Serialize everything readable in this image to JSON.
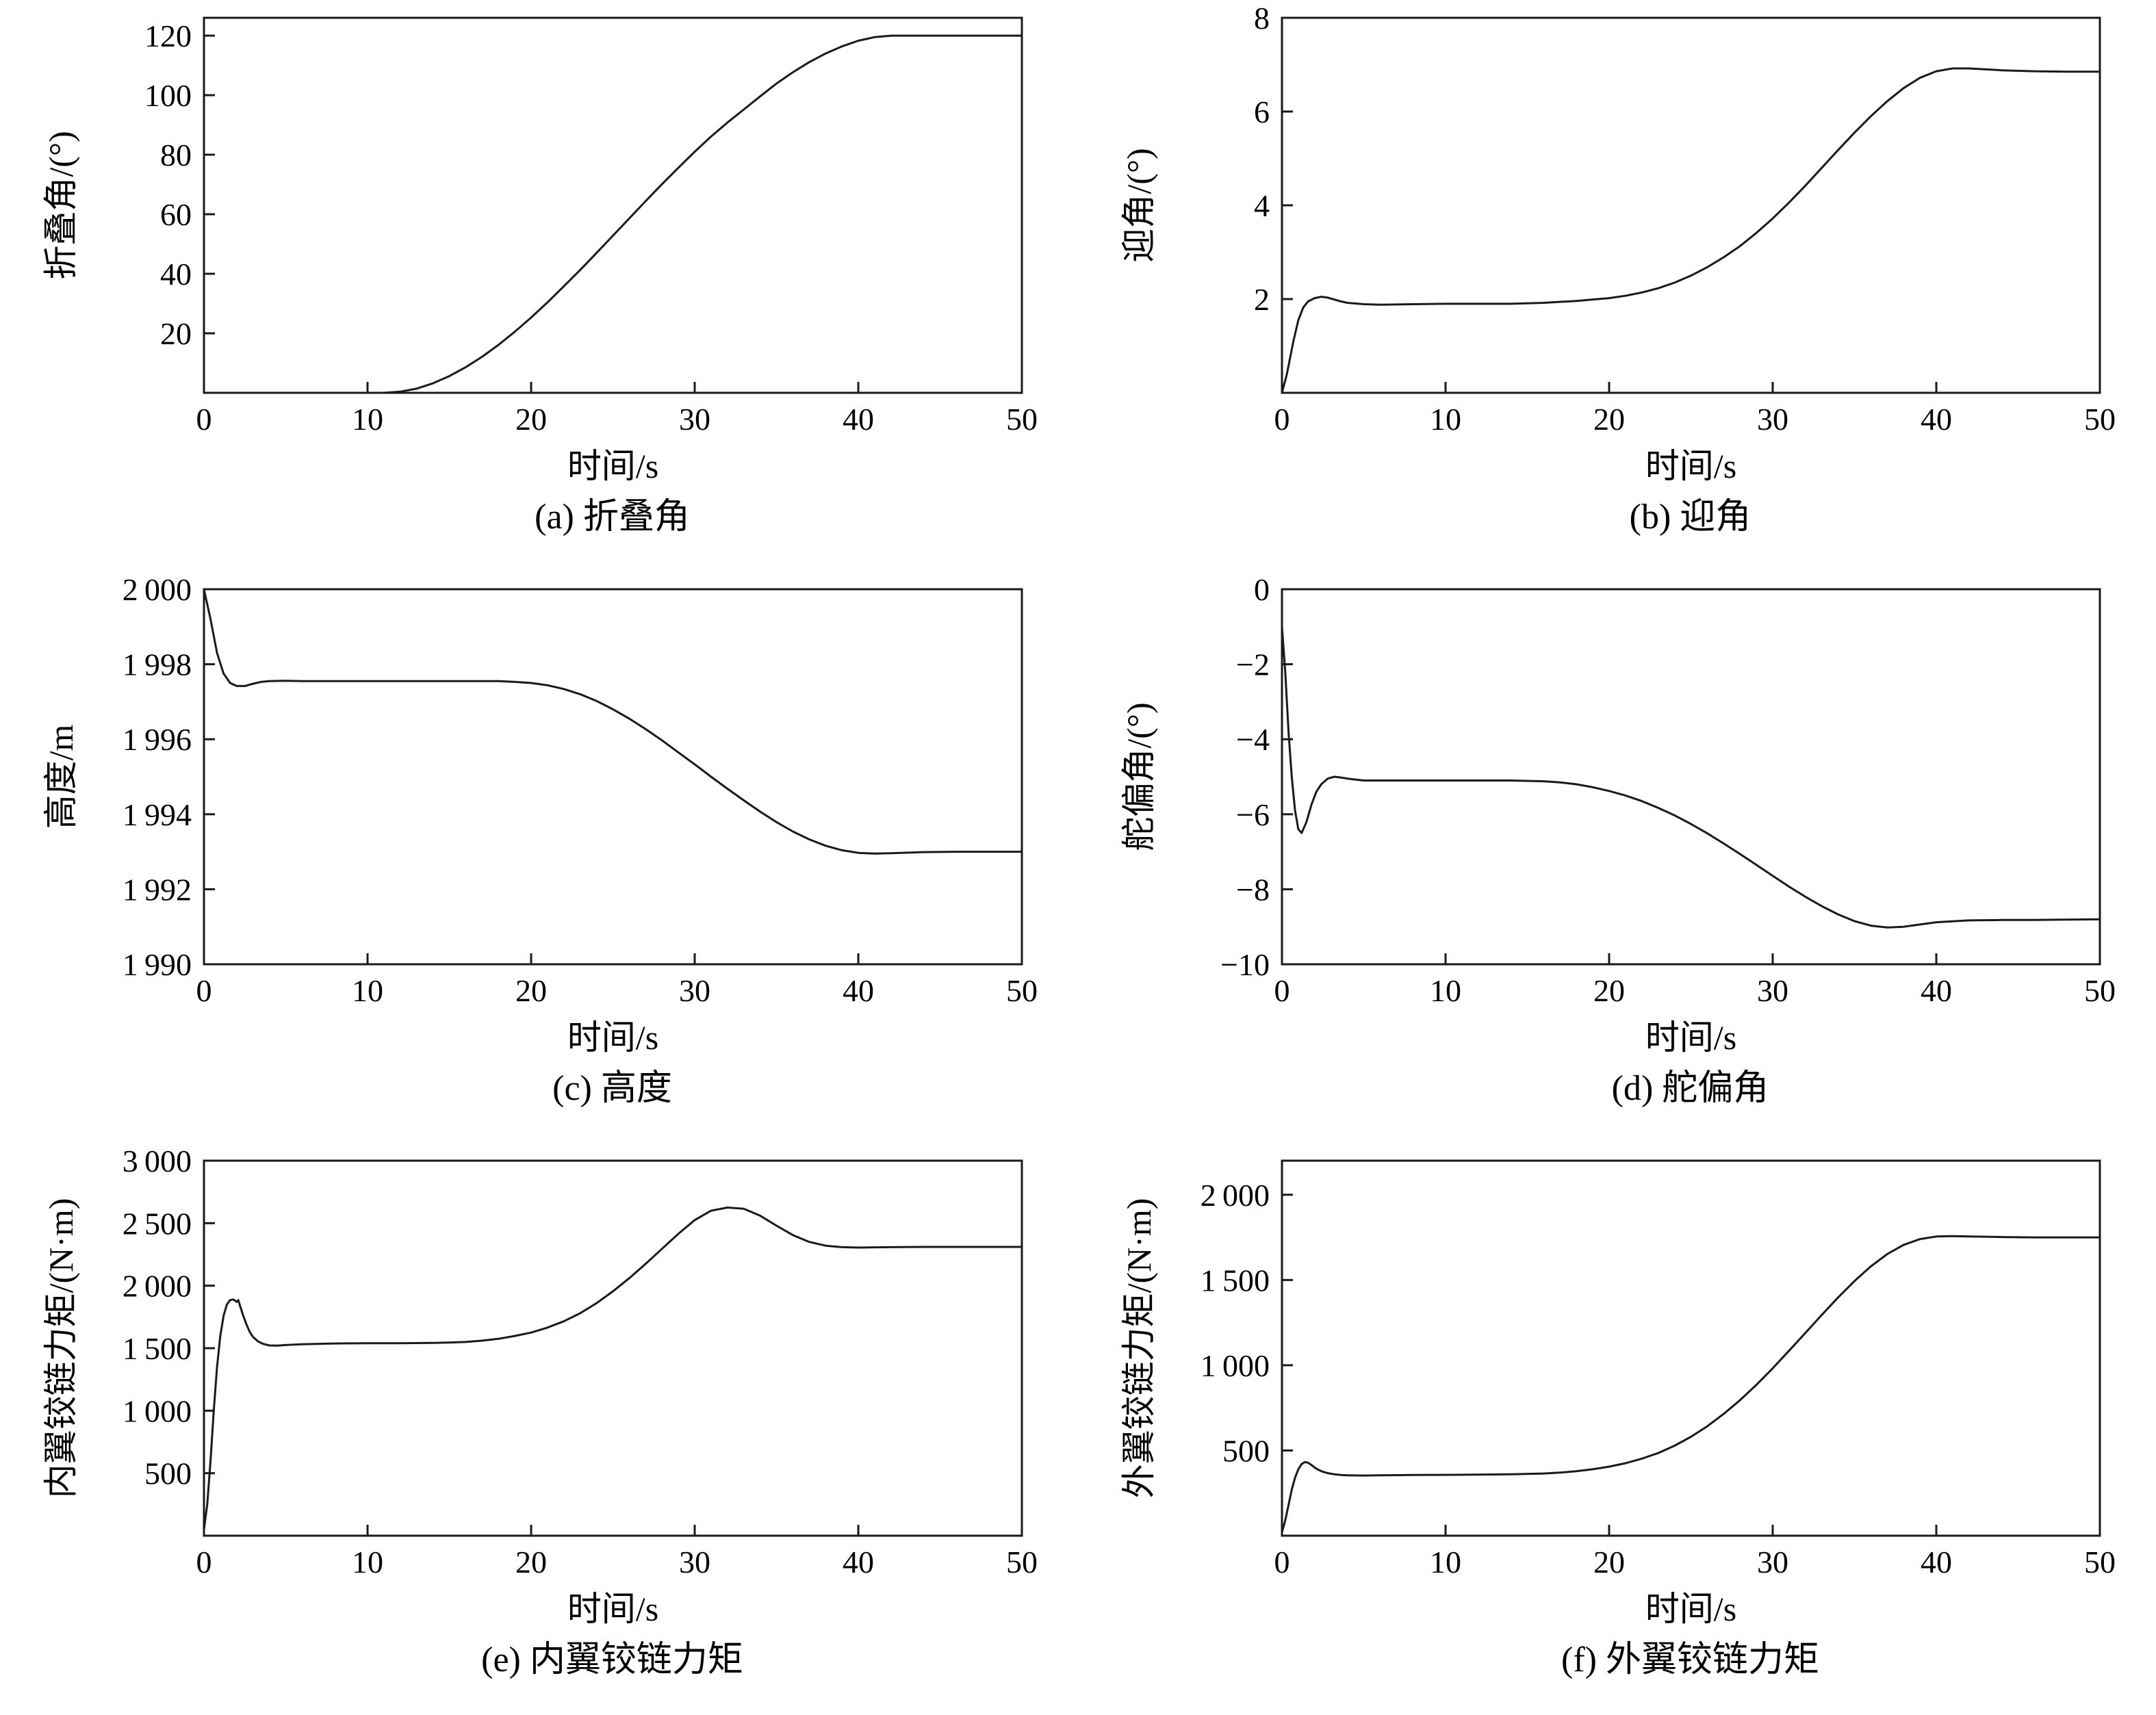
{
  "page": {
    "background": "#ffffff",
    "text_color": "#000000",
    "line_color": "#1a1a1a",
    "axis_color": "#1a1a1a"
  },
  "chart_data": [
    {
      "id": "a",
      "type": "line",
      "caption": "(a) 折叠角",
      "xlabel": "时间/s",
      "ylabel": "折叠角/(°)",
      "xlim": [
        0,
        50
      ],
      "ylim": [
        0,
        126
      ],
      "grid": false,
      "legend": "none",
      "xticks": {
        "values": [
          0,
          10,
          20,
          30,
          40,
          50
        ],
        "labels": [
          "0",
          "10",
          "20",
          "30",
          "40",
          "50"
        ]
      },
      "yticks": {
        "values": [
          20,
          40,
          60,
          80,
          100,
          120
        ],
        "labels": [
          "20",
          "40",
          "60",
          "80",
          "100",
          "120"
        ]
      },
      "x": [
        0,
        5,
        10,
        11,
        12,
        13,
        14,
        15,
        16,
        17,
        18,
        19,
        20,
        21,
        22,
        23,
        24,
        25,
        26,
        27,
        28,
        29,
        30,
        31,
        32,
        33,
        34,
        35,
        36,
        37,
        38,
        39,
        40,
        41,
        42,
        45,
        50
      ],
      "y": [
        0,
        0,
        0,
        0,
        0.4,
        1.4,
        3.2,
        5.6,
        8.6,
        12.1,
        16.1,
        20.5,
        25.3,
        30.4,
        35.8,
        41.3,
        47,
        52.8,
        58.6,
        64.4,
        70.1,
        75.6,
        81,
        86.1,
        90.8,
        95.2,
        99.6,
        103.9,
        107.7,
        111.1,
        114,
        116.4,
        118.3,
        119.5,
        120,
        120,
        120
      ]
    },
    {
      "id": "b",
      "type": "line",
      "caption": "(b) 迎角",
      "xlabel": "时间/s",
      "ylabel": "迎角/(°)",
      "xlim": [
        0,
        50
      ],
      "ylim": [
        0,
        8
      ],
      "grid": false,
      "legend": "none",
      "xticks": {
        "values": [
          0,
          10,
          20,
          30,
          40,
          50
        ],
        "labels": [
          "0",
          "10",
          "20",
          "30",
          "40",
          "50"
        ]
      },
      "yticks": {
        "values": [
          2,
          4,
          6,
          8
        ],
        "labels": [
          "2",
          "4",
          "6",
          "8"
        ]
      },
      "x": [
        0,
        0.3,
        0.7,
        1,
        1.3,
        1.6,
        2,
        2.4,
        2.8,
        3.2,
        3.6,
        4,
        5,
        6,
        8,
        10,
        12,
        14,
        16,
        18,
        20,
        21,
        22,
        23,
        24,
        25,
        26,
        27,
        28,
        29,
        30,
        31,
        32,
        33,
        34,
        35,
        36,
        37,
        38,
        39,
        40,
        41,
        42,
        44,
        46,
        48,
        50
      ],
      "y": [
        0,
        0.4,
        1.1,
        1.55,
        1.82,
        1.95,
        2.02,
        2.05,
        2.03,
        1.99,
        1.95,
        1.92,
        1.89,
        1.88,
        1.89,
        1.9,
        1.9,
        1.9,
        1.92,
        1.96,
        2.02,
        2.07,
        2.14,
        2.23,
        2.35,
        2.5,
        2.68,
        2.89,
        3.13,
        3.41,
        3.72,
        4.06,
        4.42,
        4.8,
        5.18,
        5.55,
        5.9,
        6.22,
        6.5,
        6.72,
        6.86,
        6.92,
        6.92,
        6.88,
        6.86,
        6.85,
        6.85
      ]
    },
    {
      "id": "c",
      "type": "line",
      "caption": "(c) 高度",
      "xlabel": "时间/s",
      "ylabel": "高度/m",
      "xlim": [
        0,
        50
      ],
      "ylim": [
        1990,
        2000
      ],
      "grid": false,
      "legend": "none",
      "xticks": {
        "values": [
          0,
          10,
          20,
          30,
          40,
          50
        ],
        "labels": [
          "0",
          "10",
          "20",
          "30",
          "40",
          "50"
        ]
      },
      "yticks": {
        "values": [
          1990,
          1992,
          1994,
          1996,
          1998,
          2000
        ],
        "labels": [
          "1 990",
          "1 992",
          "1 994",
          "1 996",
          "1 998",
          "2 000"
        ]
      },
      "x": [
        0,
        0.4,
        0.8,
        1.2,
        1.6,
        2,
        2.5,
        3,
        3.5,
        4,
        5,
        6,
        8,
        10,
        12,
        14,
        16,
        17,
        18,
        19,
        20,
        21,
        22,
        23,
        24,
        25,
        26,
        27,
        28,
        29,
        30,
        31,
        32,
        33,
        34,
        35,
        36,
        37,
        38,
        39,
        40,
        41,
        42,
        44,
        46,
        48,
        50
      ],
      "y": [
        2000,
        1999.2,
        1998.3,
        1997.75,
        1997.5,
        1997.42,
        1997.42,
        1997.48,
        1997.53,
        1997.55,
        1997.56,
        1997.55,
        1997.55,
        1997.55,
        1997.55,
        1997.55,
        1997.55,
        1997.55,
        1997.55,
        1997.53,
        1997.5,
        1997.44,
        1997.34,
        1997.2,
        1997.02,
        1996.8,
        1996.55,
        1996.27,
        1995.97,
        1995.65,
        1995.33,
        1995,
        1994.68,
        1994.37,
        1994.07,
        1993.79,
        1993.54,
        1993.33,
        1993.16,
        1993.04,
        1992.97,
        1992.95,
        1992.96,
        1992.99,
        1993,
        1993,
        1993
      ]
    },
    {
      "id": "d",
      "type": "line",
      "caption": "(d) 舵偏角",
      "xlabel": "时间/s",
      "ylabel": "舵偏角/(°)",
      "xlim": [
        0,
        50
      ],
      "ylim": [
        -10,
        0
      ],
      "grid": false,
      "legend": "none",
      "xticks": {
        "values": [
          0,
          10,
          20,
          30,
          40,
          50
        ],
        "labels": [
          "0",
          "10",
          "20",
          "30",
          "40",
          "50"
        ]
      },
      "yticks": {
        "values": [
          -10,
          -8,
          -6,
          -4,
          -2,
          0
        ],
        "labels": [
          "−10",
          "−8",
          "−6",
          "−4",
          "−2",
          "0"
        ]
      },
      "x": [
        0,
        0.2,
        0.4,
        0.6,
        0.8,
        1,
        1.2,
        1.5,
        1.8,
        2.1,
        2.4,
        2.8,
        3.2,
        3.6,
        4,
        5,
        6,
        8,
        10,
        12,
        14,
        16,
        17,
        18,
        19,
        20,
        21,
        22,
        23,
        24,
        25,
        26,
        27,
        28,
        29,
        30,
        31,
        32,
        33,
        34,
        35,
        36,
        37,
        38,
        39,
        40,
        42,
        44,
        46,
        48,
        50
      ],
      "y": [
        -1,
        -2.2,
        -3.8,
        -5,
        -5.9,
        -6.4,
        -6.5,
        -6.2,
        -5.75,
        -5.4,
        -5.2,
        -5.05,
        -5,
        -5.02,
        -5.05,
        -5.1,
        -5.1,
        -5.1,
        -5.1,
        -5.1,
        -5.1,
        -5.12,
        -5.15,
        -5.2,
        -5.28,
        -5.38,
        -5.5,
        -5.65,
        -5.83,
        -6.03,
        -6.26,
        -6.51,
        -6.78,
        -7.06,
        -7.35,
        -7.64,
        -7.93,
        -8.2,
        -8.45,
        -8.67,
        -8.85,
        -8.97,
        -9.02,
        -9,
        -8.94,
        -8.88,
        -8.83,
        -8.82,
        -8.82,
        -8.81,
        -8.8
      ]
    },
    {
      "id": "e",
      "type": "line",
      "caption": "(e) 内翼铰链力矩",
      "xlabel": "时间/s",
      "ylabel": "内翼铰链力矩/(N·m)",
      "xlim": [
        0,
        50
      ],
      "ylim": [
        0,
        3000
      ],
      "grid": false,
      "legend": "none",
      "xticks": {
        "values": [
          0,
          10,
          20,
          30,
          40,
          50
        ],
        "labels": [
          "0",
          "10",
          "20",
          "30",
          "40",
          "50"
        ]
      },
      "yticks": {
        "values": [
          500,
          1000,
          1500,
          2000,
          2500,
          3000
        ],
        "labels": [
          "500",
          "1 000",
          "1 500",
          "2 000",
          "2 500",
          "3 000"
        ]
      },
      "x": [
        0,
        0.2,
        0.4,
        0.6,
        0.8,
        1,
        1.2,
        1.4,
        1.6,
        1.8,
        2,
        2.1,
        2.2,
        2.4,
        2.6,
        2.8,
        3,
        3.3,
        3.6,
        4,
        4.5,
        5,
        6,
        8,
        10,
        12,
        14,
        15,
        16,
        17,
        18,
        19,
        20,
        21,
        22,
        23,
        24,
        25,
        26,
        27,
        28,
        29,
        30,
        31,
        32,
        33,
        34,
        35,
        36,
        37,
        38,
        39,
        40,
        42,
        44,
        46,
        48,
        50
      ],
      "y": [
        50,
        250,
        600,
        1000,
        1350,
        1600,
        1760,
        1850,
        1885,
        1890,
        1870,
        1885,
        1840,
        1760,
        1690,
        1630,
        1590,
        1555,
        1535,
        1522,
        1520,
        1525,
        1532,
        1538,
        1540,
        1540,
        1542,
        1545,
        1550,
        1560,
        1575,
        1598,
        1625,
        1665,
        1715,
        1780,
        1860,
        1955,
        2060,
        2175,
        2295,
        2415,
        2525,
        2600,
        2625,
        2615,
        2560,
        2480,
        2405,
        2350,
        2320,
        2308,
        2305,
        2308,
        2310,
        2310,
        2310,
        2310
      ]
    },
    {
      "id": "f",
      "type": "line",
      "caption": "(f) 外翼铰链力矩",
      "xlabel": "时间/s",
      "ylabel": "外翼铰链力矩/(N·m)",
      "xlim": [
        0,
        50
      ],
      "ylim": [
        0,
        2200
      ],
      "grid": false,
      "legend": "none",
      "xticks": {
        "values": [
          0,
          10,
          20,
          30,
          40,
          50
        ],
        "labels": [
          "0",
          "10",
          "20",
          "30",
          "40",
          "50"
        ]
      },
      "yticks": {
        "values": [
          500,
          1000,
          1500,
          2000
        ],
        "labels": [
          "500",
          "1 000",
          "1 500",
          "2 000"
        ]
      },
      "x": [
        0,
        0.2,
        0.4,
        0.6,
        0.8,
        1,
        1.2,
        1.4,
        1.6,
        1.8,
        2,
        2.2,
        2.5,
        2.8,
        3.2,
        3.6,
        4,
        5,
        6,
        8,
        10,
        12,
        14,
        16,
        17,
        18,
        19,
        20,
        21,
        22,
        23,
        24,
        25,
        26,
        27,
        28,
        29,
        30,
        31,
        32,
        33,
        34,
        35,
        36,
        37,
        38,
        39,
        40,
        41,
        42,
        44,
        46,
        48,
        50
      ],
      "y": [
        20,
        90,
        180,
        270,
        340,
        390,
        420,
        432,
        428,
        415,
        400,
        388,
        375,
        367,
        360,
        356,
        354,
        353,
        354,
        356,
        357,
        358,
        360,
        365,
        370,
        378,
        390,
        405,
        425,
        452,
        485,
        528,
        580,
        642,
        714,
        795,
        885,
        982,
        1085,
        1190,
        1295,
        1398,
        1494,
        1580,
        1652,
        1706,
        1740,
        1755,
        1757,
        1755,
        1752,
        1750,
        1750,
        1750
      ]
    }
  ]
}
